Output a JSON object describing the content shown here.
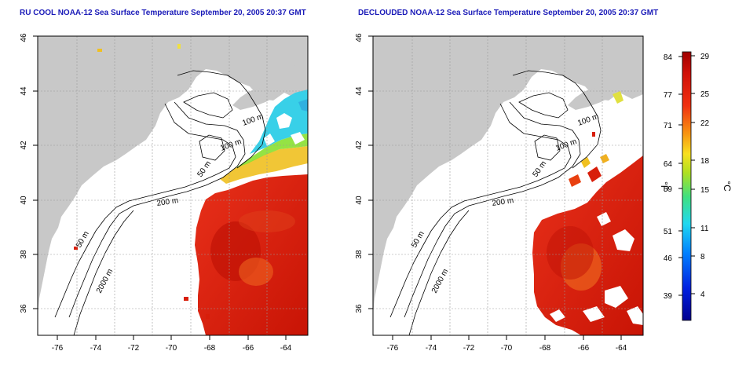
{
  "titles": {
    "left": "RU COOL NOAA-12 Sea Surface Temperature September 20, 2005 20:37 GMT",
    "right": "DECLOUDED NOAA-12 Sea Surface Temperature September 20, 2005 20:37 GMT"
  },
  "axes": {
    "x_ticks": [
      "-76",
      "-74",
      "-72",
      "-70",
      "-68",
      "-66",
      "-64"
    ],
    "y_ticks": [
      "36",
      "38",
      "40",
      "42",
      "44",
      "46"
    ]
  },
  "contours": {
    "left": [
      "100 m",
      "100 m",
      "50 m",
      "200 m",
      "50 m",
      "2000 m"
    ],
    "right": [
      "100 m",
      "100 m",
      "50 m",
      "200 m",
      "50 m",
      "2000 m"
    ]
  },
  "colorbar": {
    "unit_f": "°F",
    "unit_c": "°C",
    "f_ticks": [
      "84",
      "77",
      "71",
      "64",
      "59",
      "51",
      "46",
      "39"
    ],
    "c_ticks": [
      "29",
      "25",
      "22",
      "18",
      "15",
      "11",
      "8",
      "4"
    ]
  },
  "colors": {
    "land": "#c8c8c8",
    "title": "#1a1ab8",
    "sst_warm": "#d81e0a",
    "sst_cool": "#38d0e8"
  }
}
